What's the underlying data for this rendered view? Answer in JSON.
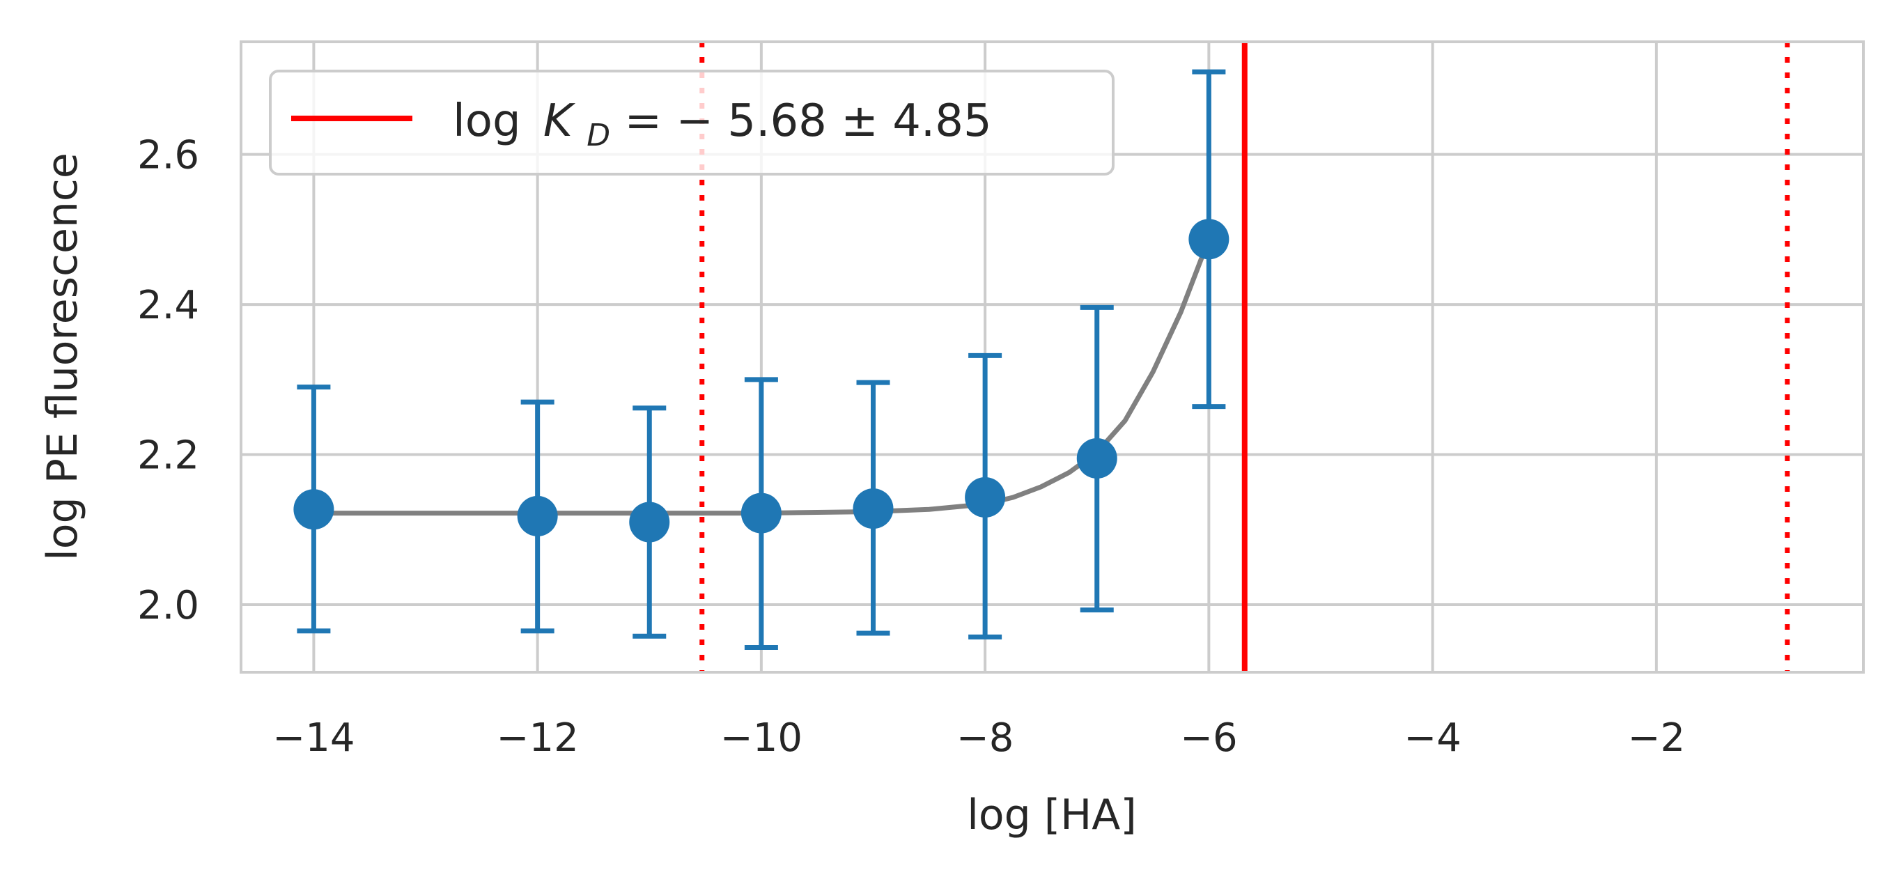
{
  "chart_data": {
    "type": "scatter",
    "xlabel": "log [HA]",
    "ylabel": "log PE fluorescence",
    "xlim": [
      -14.65,
      -0.15
    ],
    "ylim": [
      1.91,
      2.75
    ],
    "xticks": [
      -14,
      -12,
      -10,
      -8,
      -6,
      -4,
      -2
    ],
    "xtick_labels": [
      "−14",
      "−12",
      "−10",
      "−8",
      "−6",
      "−4",
      "−2"
    ],
    "yticks": [
      2.0,
      2.2,
      2.4,
      2.6
    ],
    "ytick_labels": [
      "2.0",
      "2.2",
      "2.4",
      "2.6"
    ],
    "grid": true,
    "legend_position": "top-left",
    "colors": {
      "points": "#1f77b4",
      "fit": "#808080",
      "kd": "#ff0000",
      "grid": "#cccccc"
    },
    "points": [
      {
        "x": -14,
        "y": 2.127,
        "err_low": 1.965,
        "err_high": 2.29
      },
      {
        "x": -12,
        "y": 2.118,
        "err_low": 1.965,
        "err_high": 2.27
      },
      {
        "x": -11,
        "y": 2.11,
        "err_low": 1.958,
        "err_high": 2.262
      },
      {
        "x": -10,
        "y": 2.122,
        "err_low": 1.943,
        "err_high": 2.3
      },
      {
        "x": -9,
        "y": 2.128,
        "err_low": 1.962,
        "err_high": 2.296
      },
      {
        "x": -8,
        "y": 2.143,
        "err_low": 1.957,
        "err_high": 2.332
      },
      {
        "x": -7,
        "y": 2.195,
        "err_low": 1.993,
        "err_high": 2.396
      },
      {
        "x": -6,
        "y": 2.487,
        "err_low": 2.264,
        "err_high": 2.71
      }
    ],
    "fit_curve": {
      "x": [
        -14,
        -13,
        -12,
        -11,
        -10,
        -9.5,
        -9,
        -8.5,
        -8,
        -7.75,
        -7.5,
        -7.25,
        -7,
        -6.75,
        -6.5,
        -6.25,
        -6
      ],
      "y": [
        2.122,
        2.122,
        2.122,
        2.122,
        2.122,
        2.123,
        2.124,
        2.127,
        2.134,
        2.143,
        2.157,
        2.176,
        2.203,
        2.245,
        2.31,
        2.39,
        2.487
      ]
    },
    "kd": {
      "value": -5.68,
      "lower": -10.53,
      "upper": -0.83
    },
    "legend": {
      "label_prefix": "log",
      "label_var": "K",
      "label_sub": "D",
      "label_rest": " = − 5.68 ± 4.85"
    }
  }
}
